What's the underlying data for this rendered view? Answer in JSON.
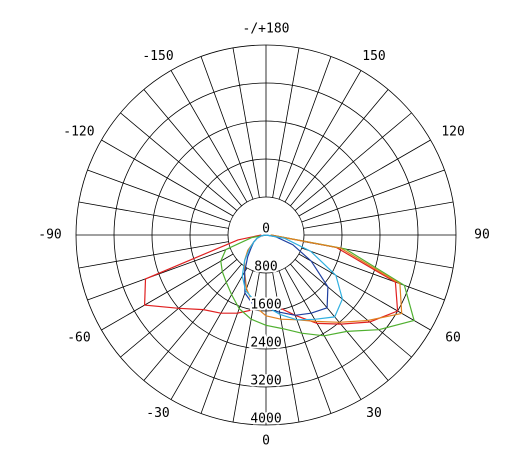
{
  "chart_data": {
    "type": "polar",
    "rlim": [
      0,
      4000
    ],
    "rticks": [
      0,
      800,
      1600,
      2400,
      3200,
      4000
    ],
    "angle_ticks": [
      0,
      30,
      60,
      90,
      120,
      150,
      {
        "value": 180,
        "label": "-/+180"
      },
      -150,
      -120,
      -90,
      -60,
      -30
    ],
    "grid_step_deg": 10,
    "theta": [
      -90,
      -80,
      -70,
      -60,
      -50,
      -40,
      -30,
      -20,
      -10,
      0,
      10,
      20,
      30,
      40,
      50,
      60,
      70,
      80,
      90
    ],
    "series": [
      {
        "color": "#e02020",
        "values": [
          100,
          600,
          2700,
          2950,
          2400,
          2050,
          1900,
          1750,
          1600,
          1500,
          1550,
          1800,
          2150,
          2450,
          2850,
          3200,
          2900,
          1500,
          100
        ]
      },
      {
        "color": "#50b030",
        "values": [
          0,
          300,
          900,
          1100,
          1200,
          1300,
          1450,
          1650,
          1800,
          1900,
          2000,
          2200,
          2450,
          2650,
          3100,
          3600,
          3100,
          1700,
          100
        ]
      },
      {
        "color": "#e08020",
        "values": [
          0,
          100,
          200,
          300,
          500,
          700,
          900,
          1200,
          1500,
          1700,
          1800,
          1900,
          2100,
          2400,
          2800,
          3300,
          3000,
          1600,
          100
        ]
      },
      {
        "color": "#1f3fa0",
        "values": [
          0,
          100,
          200,
          300,
          400,
          600,
          900,
          1300,
          1500,
          1550,
          1650,
          1800,
          1900,
          2000,
          1700,
          1100,
          600,
          200,
          0
        ]
      },
      {
        "color": "#30b0e0",
        "values": [
          0,
          100,
          200,
          300,
          450,
          700,
          1000,
          1250,
          1400,
          1500,
          1700,
          1900,
          2050,
          2250,
          2100,
          1700,
          1000,
          400,
          0
        ]
      }
    ]
  }
}
